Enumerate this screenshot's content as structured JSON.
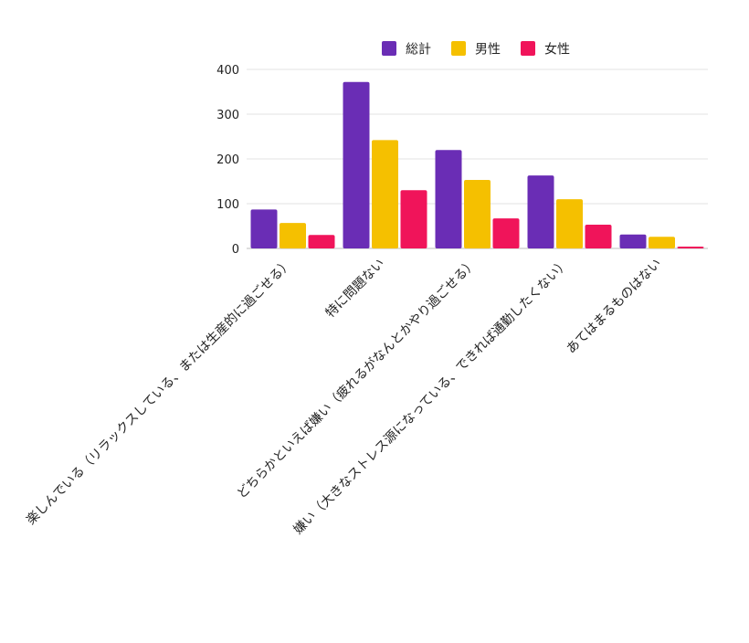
{
  "chart_data": {
    "type": "bar",
    "categories": [
      "楽しんでいる（リラックスしている、または生産的に過ごせる）",
      "特に問題ない",
      "どちらかといえば嫌い（疲れるがなんとかやり過ごせる）",
      "嫌い（大きなストレス源になっている、できれば通勤したくない）",
      "あてはまるものはない"
    ],
    "series": [
      {
        "name": "総計",
        "color": "#6a2db5",
        "values": [
          87,
          372,
          220,
          163,
          31
        ]
      },
      {
        "name": "男性",
        "color": "#f5c000",
        "values": [
          57,
          242,
          153,
          110,
          26
        ]
      },
      {
        "name": "女性",
        "color": "#f0145a",
        "values": [
          30,
          130,
          67,
          53,
          4
        ]
      }
    ],
    "ylim": [
      0,
      400
    ],
    "yticks": [
      "0",
      "100",
      "200",
      "300",
      "400"
    ],
    "grid": true,
    "legend_position": "top"
  }
}
